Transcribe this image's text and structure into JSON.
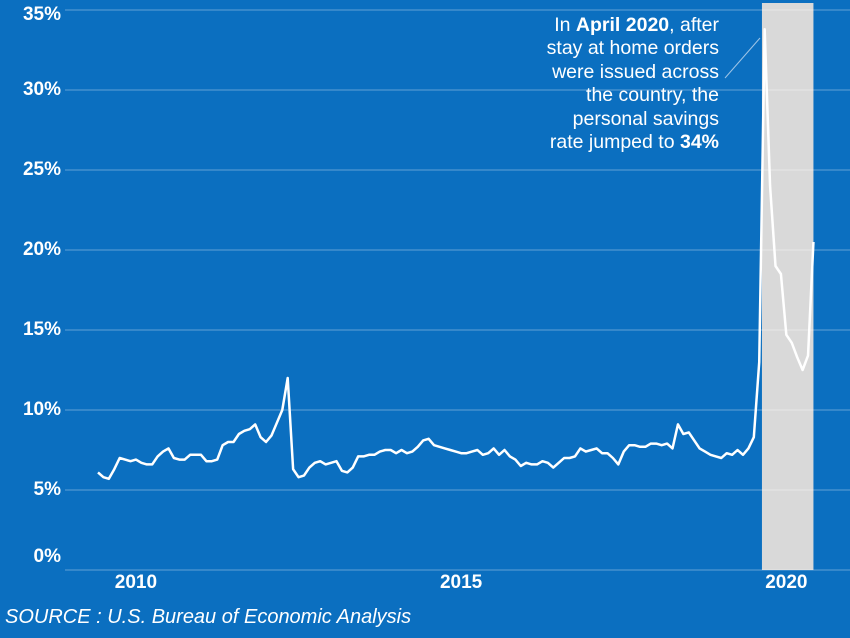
{
  "chart_data": {
    "type": "line",
    "categories": [
      null,
      null,
      null,
      null,
      null,
      null,
      null,
      "2010",
      null,
      null,
      null,
      null,
      null,
      null,
      null,
      null,
      null,
      null,
      null,
      null,
      null,
      null,
      null,
      null,
      null,
      null,
      null,
      null,
      null,
      null,
      null,
      null,
      null,
      null,
      null,
      null,
      null,
      null,
      null,
      null,
      null,
      null,
      null,
      null,
      null,
      null,
      null,
      null,
      null,
      null,
      null,
      null,
      null,
      null,
      null,
      null,
      null,
      null,
      null,
      null,
      null,
      null,
      null,
      null,
      null,
      null,
      null,
      "2015",
      null,
      null,
      null,
      null,
      null,
      null,
      null,
      null,
      null,
      null,
      null,
      null,
      null,
      null,
      null,
      null,
      null,
      null,
      null,
      null,
      null,
      null,
      null,
      null,
      null,
      null,
      null,
      null,
      null,
      null,
      null,
      null,
      null,
      null,
      null,
      null,
      null,
      null,
      null,
      null,
      null,
      null,
      null,
      null,
      null,
      null,
      null,
      null,
      null,
      null,
      null,
      null,
      null,
      null,
      null,
      null,
      null,
      null,
      null,
      "2020",
      null,
      null,
      null,
      null,
      null
    ],
    "values": [
      6.1,
      5.8,
      5.7,
      6.3,
      7.0,
      6.9,
      6.8,
      6.9,
      6.7,
      6.6,
      6.6,
      7.1,
      7.4,
      7.6,
      7.0,
      6.9,
      6.9,
      7.2,
      7.2,
      7.2,
      6.8,
      6.8,
      6.9,
      7.8,
      8.0,
      8.0,
      8.5,
      8.7,
      8.8,
      9.1,
      8.3,
      8.0,
      8.4,
      9.2,
      10.0,
      12.0,
      6.3,
      5.8,
      5.9,
      6.4,
      6.7,
      6.8,
      6.6,
      6.7,
      6.8,
      6.2,
      6.1,
      6.4,
      7.1,
      7.1,
      7.2,
      7.2,
      7.4,
      7.5,
      7.5,
      7.3,
      7.5,
      7.3,
      7.4,
      7.7,
      8.1,
      8.2,
      7.8,
      7.7,
      7.6,
      7.5,
      7.4,
      7.3,
      7.3,
      7.4,
      7.5,
      7.2,
      7.3,
      7.6,
      7.2,
      7.5,
      7.1,
      6.9,
      6.5,
      6.7,
      6.6,
      6.6,
      6.8,
      6.7,
      6.4,
      6.7,
      7.0,
      7.0,
      7.1,
      7.6,
      7.4,
      7.5,
      7.6,
      7.3,
      7.3,
      7.0,
      6.6,
      7.4,
      7.8,
      7.8,
      7.7,
      7.7,
      7.9,
      7.9,
      7.8,
      7.9,
      7.6,
      9.1,
      8.5,
      8.6,
      8.1,
      7.6,
      7.4,
      7.2,
      7.1,
      7.0,
      7.3,
      7.2,
      7.5,
      7.2,
      7.6,
      8.3,
      13.0,
      33.8,
      24.0,
      19.0,
      18.5,
      14.7,
      14.2,
      13.3,
      12.5,
      13.4,
      20.5
    ],
    "color": "#ffffff",
    "shaded_categories": [
      123,
      132
    ],
    "shade_color": "#d9d9d9",
    "ylim": [
      0,
      35
    ],
    "yticks": [
      {
        "value": 0,
        "label": "0%"
      },
      {
        "value": 5,
        "label": "5%"
      },
      {
        "value": 10,
        "label": "10%"
      },
      {
        "value": 15,
        "label": "15%"
      },
      {
        "value": 20,
        "label": "20%"
      },
      {
        "value": 25,
        "label": "25%"
      },
      {
        "value": 30,
        "label": "30%"
      },
      {
        "value": 35,
        "label": "35%"
      }
    ],
    "grid": true,
    "annotation": [
      [
        "In ",
        "April 2020",
        ", after"
      ],
      [
        "stay at home orders"
      ],
      [
        "were issued across"
      ],
      [
        "the country, the"
      ],
      [
        "personal savings"
      ],
      [
        "rate jumped to ",
        "34%"
      ]
    ],
    "source": "SOURCE : U.S. Bureau of Economic Analysis"
  }
}
